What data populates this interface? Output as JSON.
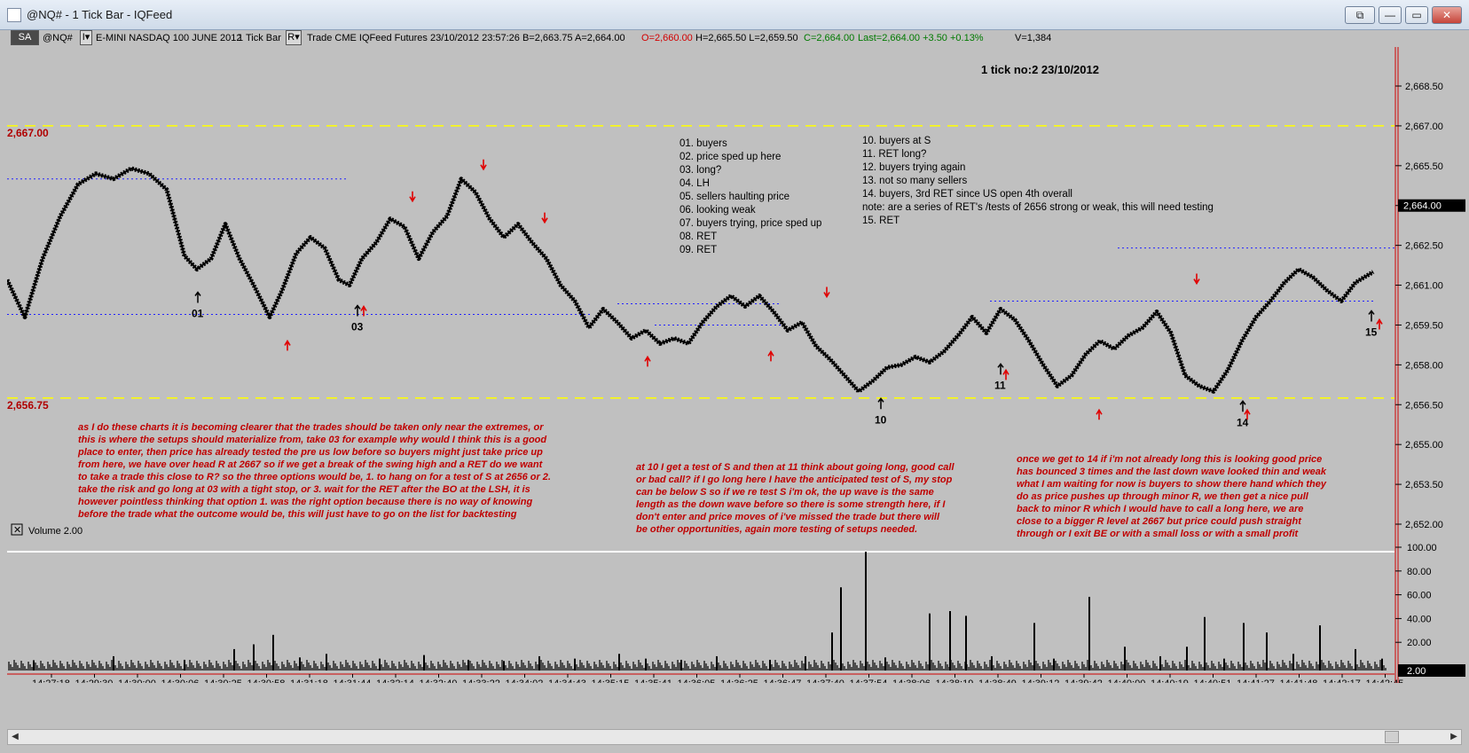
{
  "window": {
    "title": "@NQ# - 1 Tick Bar - IQFeed",
    "buttons": [
      "⧉",
      "—",
      "▭",
      "✕"
    ]
  },
  "toolbar": {
    "sa_label": "SA",
    "symbol": "@NQ#",
    "interval_btn": "I▾",
    "description": "E-MINI NASDAQ 100 JUNE 2012",
    "bar_type": "1 Tick Bar",
    "r_btn": "R▾",
    "feed_info": "Trade  CME  IQFeed  Futures  23/10/2012  23:57:26  B=2,663.75  A=2,664.00",
    "open_q": "O=2,660.00",
    "hl_q": "H=2,665.50  L=2,659.50",
    "close_q": "C=2,664.00",
    "last_q": "Last=2,664.00  +3.50  +0.13%",
    "vol_q": "V=1,384"
  },
  "chart_data": [
    {
      "type": "line",
      "title": "1 tick no:2 23/10/2012",
      "ylim": [
        2652.0,
        2670.0
      ],
      "y_ticks": [
        "2,668.50",
        "2,667.00",
        "2,665.50",
        "2,664.00",
        "2,662.50",
        "2,661.00",
        "2,659.50",
        "2,658.00",
        "2,656.50",
        "2,655.00",
        "2,653.50",
        "2,652.00"
      ],
      "x_ticks": [
        "14:27:18",
        "14:29:30",
        "14:30:00",
        "14:30:06",
        "14:30:25",
        "14:30:58",
        "14:31:18",
        "14:31:44",
        "14:32:14",
        "14:32:40",
        "14:33:22",
        "14:34:02",
        "14:34:43",
        "14:35:15",
        "14:35:41",
        "14:36:05",
        "14:36:25",
        "14:36:47",
        "14:37:40",
        "14:37:54",
        "14:38:06",
        "14:38:19",
        "14:38:49",
        "14:39:12",
        "14:39:42",
        "14:40:00",
        "14:40:19",
        "14:40:51",
        "14:41:27",
        "14:41:48",
        "14:42:17",
        "14:42:45"
      ],
      "last_price_label": "2,664.00",
      "levels": [
        {
          "name": "resistance",
          "label": "2,667.00",
          "value": 2667.0,
          "color": "#ffff00"
        },
        {
          "name": "support",
          "label": "2,656.75",
          "value": 2656.75,
          "color": "#ffff00"
        }
      ],
      "price_path": [
        [
          0,
          2661.2
        ],
        [
          20,
          2659.8
        ],
        [
          40,
          2662
        ],
        [
          60,
          2663.6
        ],
        [
          80,
          2664.8
        ],
        [
          100,
          2665.2
        ],
        [
          120,
          2665.0
        ],
        [
          140,
          2665.4
        ],
        [
          160,
          2665.2
        ],
        [
          180,
          2664.6
        ],
        [
          200,
          2662.1
        ],
        [
          214,
          2661.6
        ],
        [
          230,
          2662
        ],
        [
          246,
          2663.3
        ],
        [
          262,
          2662
        ],
        [
          278,
          2661.0
        ],
        [
          296,
          2659.8
        ],
        [
          310,
          2660.8
        ],
        [
          326,
          2662.2
        ],
        [
          342,
          2662.8
        ],
        [
          358,
          2662.4
        ],
        [
          374,
          2661.2
        ],
        [
          386,
          2661.0
        ],
        [
          400,
          2662.0
        ],
        [
          416,
          2662.6
        ],
        [
          432,
          2663.5
        ],
        [
          448,
          2663.2
        ],
        [
          464,
          2662.0
        ],
        [
          480,
          2663.0
        ],
        [
          496,
          2663.6
        ],
        [
          512,
          2665.0
        ],
        [
          528,
          2664.5
        ],
        [
          544,
          2663.5
        ],
        [
          560,
          2662.8
        ],
        [
          576,
          2663.3
        ],
        [
          592,
          2662.6
        ],
        [
          608,
          2662.0
        ],
        [
          624,
          2661.0
        ],
        [
          640,
          2660.4
        ],
        [
          656,
          2659.4
        ],
        [
          672,
          2660.1
        ],
        [
          688,
          2659.6
        ],
        [
          704,
          2659.0
        ],
        [
          720,
          2659.3
        ],
        [
          736,
          2658.8
        ],
        [
          752,
          2659.0
        ],
        [
          768,
          2658.8
        ],
        [
          784,
          2659.6
        ],
        [
          800,
          2660.2
        ],
        [
          816,
          2660.6
        ],
        [
          832,
          2660.2
        ],
        [
          848,
          2660.6
        ],
        [
          864,
          2660.0
        ],
        [
          880,
          2659.3
        ],
        [
          896,
          2659.6
        ],
        [
          912,
          2658.7
        ],
        [
          928,
          2658.2
        ],
        [
          944,
          2657.6
        ],
        [
          960,
          2657.0
        ],
        [
          976,
          2657.4
        ],
        [
          992,
          2657.9
        ],
        [
          1008,
          2658.0
        ],
        [
          1024,
          2658.3
        ],
        [
          1040,
          2658.1
        ],
        [
          1056,
          2658.5
        ],
        [
          1072,
          2659.1
        ],
        [
          1088,
          2659.8
        ],
        [
          1104,
          2659.2
        ],
        [
          1120,
          2660.1
        ],
        [
          1136,
          2659.7
        ],
        [
          1152,
          2658.9
        ],
        [
          1168,
          2658.0
        ],
        [
          1184,
          2657.2
        ],
        [
          1200,
          2657.6
        ],
        [
          1216,
          2658.4
        ],
        [
          1232,
          2658.9
        ],
        [
          1248,
          2658.6
        ],
        [
          1264,
          2659.1
        ],
        [
          1280,
          2659.4
        ],
        [
          1296,
          2660.0
        ],
        [
          1312,
          2659.2
        ],
        [
          1328,
          2657.6
        ],
        [
          1344,
          2657.2
        ],
        [
          1360,
          2657.0
        ],
        [
          1376,
          2657.8
        ],
        [
          1392,
          2658.9
        ],
        [
          1408,
          2659.8
        ],
        [
          1424,
          2660.4
        ],
        [
          1440,
          2661.1
        ],
        [
          1456,
          2661.6
        ],
        [
          1472,
          2661.3
        ],
        [
          1488,
          2660.8
        ],
        [
          1504,
          2660.4
        ],
        [
          1520,
          2661.1
        ],
        [
          1540,
          2661.5
        ]
      ],
      "annotations": {
        "headline": "1 tick no:2 23/10/2012",
        "list_left": [
          "01. buyers",
          "02. price sped up here",
          "03. long?",
          "04. LH",
          "05. sellers haulting price",
          "06. looking weak",
          "07. buyers trying, price sped up",
          "08. RET",
          "09. RET"
        ],
        "list_right": [
          "10. buyers at S",
          "11. RET long?",
          "12. buyers trying again",
          "13. not so many sellers",
          "14. buyers, 3rd RET since US open 4th overall",
          "note: are a series of RET's /tests of 2656 strong or weak, this will need testing",
          "15. RET"
        ],
        "markers": [
          {
            "label": "01",
            "x": 215,
            "y": 2660.4
          },
          {
            "label": "03",
            "x": 395,
            "y": 2659.9
          },
          {
            "label": "10",
            "x": 985,
            "y": 2656.4
          },
          {
            "label": "11",
            "x": 1120,
            "y": 2657.7
          },
          {
            "label": "14",
            "x": 1393,
            "y": 2656.3
          },
          {
            "label": "15",
            "x": 1538,
            "y": 2659.7
          }
        ],
        "red_arrows": [
          {
            "x": 316,
            "dir": "up",
            "y": 2659.0
          },
          {
            "x": 402,
            "dir": "up",
            "y": 2660.3
          },
          {
            "x": 457,
            "dir": "down",
            "y": 2664.0
          },
          {
            "x": 537,
            "dir": "down",
            "y": 2665.2
          },
          {
            "x": 606,
            "dir": "down",
            "y": 2663.2
          },
          {
            "x": 722,
            "dir": "up",
            "y": 2658.4
          },
          {
            "x": 861,
            "dir": "up",
            "y": 2658.6
          },
          {
            "x": 924,
            "dir": "down",
            "y": 2660.4
          },
          {
            "x": 1126,
            "dir": "up",
            "y": 2657.9
          },
          {
            "x": 1231,
            "dir": "up",
            "y": 2656.4
          },
          {
            "x": 1341,
            "dir": "down",
            "y": 2660.9
          },
          {
            "x": 1398,
            "dir": "up",
            "y": 2656.4
          },
          {
            "x": 1547,
            "dir": "up",
            "y": 2659.8
          }
        ],
        "blue_dotted": [
          {
            "x1": 0,
            "x2": 383,
            "y": 2665.0
          },
          {
            "x1": 0,
            "x2": 660,
            "y": 2659.9
          },
          {
            "x1": 688,
            "x2": 870,
            "y": 2660.3
          },
          {
            "x1": 730,
            "x2": 880,
            "y": 2659.5
          },
          {
            "x1": 1108,
            "x2": 1540,
            "y": 2660.4
          },
          {
            "x1": 1252,
            "x2": 1564,
            "y": 2662.4
          }
        ],
        "comment1": [
          "as I do these charts it is becoming clearer that the trades should be taken only near the extremes, or",
          "this is where the setups should materialize from, take 03 for example why would I think this is a good",
          "place to enter, then price has already tested the pre us low before so buyers might just take price up",
          "from here, we have over head R at 2667 so if we get a break of the swing high and a RET do we want",
          "to take a trade this close to R? so the three options would be, 1. to hang on for a test of S at 2656 or 2.",
          "take the risk and go long at 03 with a tight stop, or 3. wait for the RET after the BO at the LSH, it is",
          "however pointless thinking that option 1. was the right option because there is no way of knowing",
          "before the trade what the outcome would be, this will just have to go on the list for backtesting"
        ],
        "comment2": [
          "at 10 I get a test of S and then at 11 think about going long, good call",
          "or bad call? if I go long here I have the anticipated test of S, my stop",
          "can be below S so if we re test S i'm ok, the up wave is the same",
          "length as the down wave before so there is some strength here, if I",
          "don't enter and price moves of i've missed the trade but there will",
          "be other opportunities, again more testing of setups needed."
        ],
        "comment3": [
          "once we get to 14 if i'm not already long this is looking good price",
          "has bounced 3 times and the last down wave looked thin and weak",
          "what I am waiting for now is buyers to show there hand which they",
          "do as price pushes up through minor R, we then get a nice pull",
          "back to minor R which I would have to call a long here, we are",
          "close to a bigger R level at 2667 but price could push straight",
          "through or I exit BE or with a small loss or with a small profit"
        ]
      }
    },
    {
      "type": "bar",
      "title": "Volume  2.00",
      "ylim": [
        0,
        110
      ],
      "y_ticks": [
        "100.00",
        "80.00",
        "60.00",
        "40.00",
        "20.00"
      ],
      "last_volume_label": "2.00",
      "spikes": [
        [
          30,
          8
        ],
        [
          120,
          12
        ],
        [
          200,
          9
        ],
        [
          256,
          18
        ],
        [
          278,
          22
        ],
        [
          300,
          30
        ],
        [
          330,
          11
        ],
        [
          360,
          14
        ],
        [
          420,
          10
        ],
        [
          470,
          13
        ],
        [
          520,
          9
        ],
        [
          560,
          8
        ],
        [
          600,
          12
        ],
        [
          640,
          10
        ],
        [
          690,
          14
        ],
        [
          720,
          10
        ],
        [
          760,
          9
        ],
        [
          800,
          12
        ],
        [
          860,
          9
        ],
        [
          900,
          12
        ],
        [
          930,
          32
        ],
        [
          940,
          70
        ],
        [
          968,
          100
        ],
        [
          990,
          11
        ],
        [
          1040,
          48
        ],
        [
          1063,
          50
        ],
        [
          1081,
          46
        ],
        [
          1110,
          12
        ],
        [
          1158,
          40
        ],
        [
          1180,
          10
        ],
        [
          1220,
          62
        ],
        [
          1260,
          20
        ],
        [
          1300,
          12
        ],
        [
          1330,
          20
        ],
        [
          1350,
          45
        ],
        [
          1372,
          10
        ],
        [
          1394,
          40
        ],
        [
          1420,
          32
        ],
        [
          1450,
          14
        ],
        [
          1480,
          38
        ],
        [
          1520,
          18
        ],
        [
          1550,
          10
        ]
      ]
    }
  ]
}
